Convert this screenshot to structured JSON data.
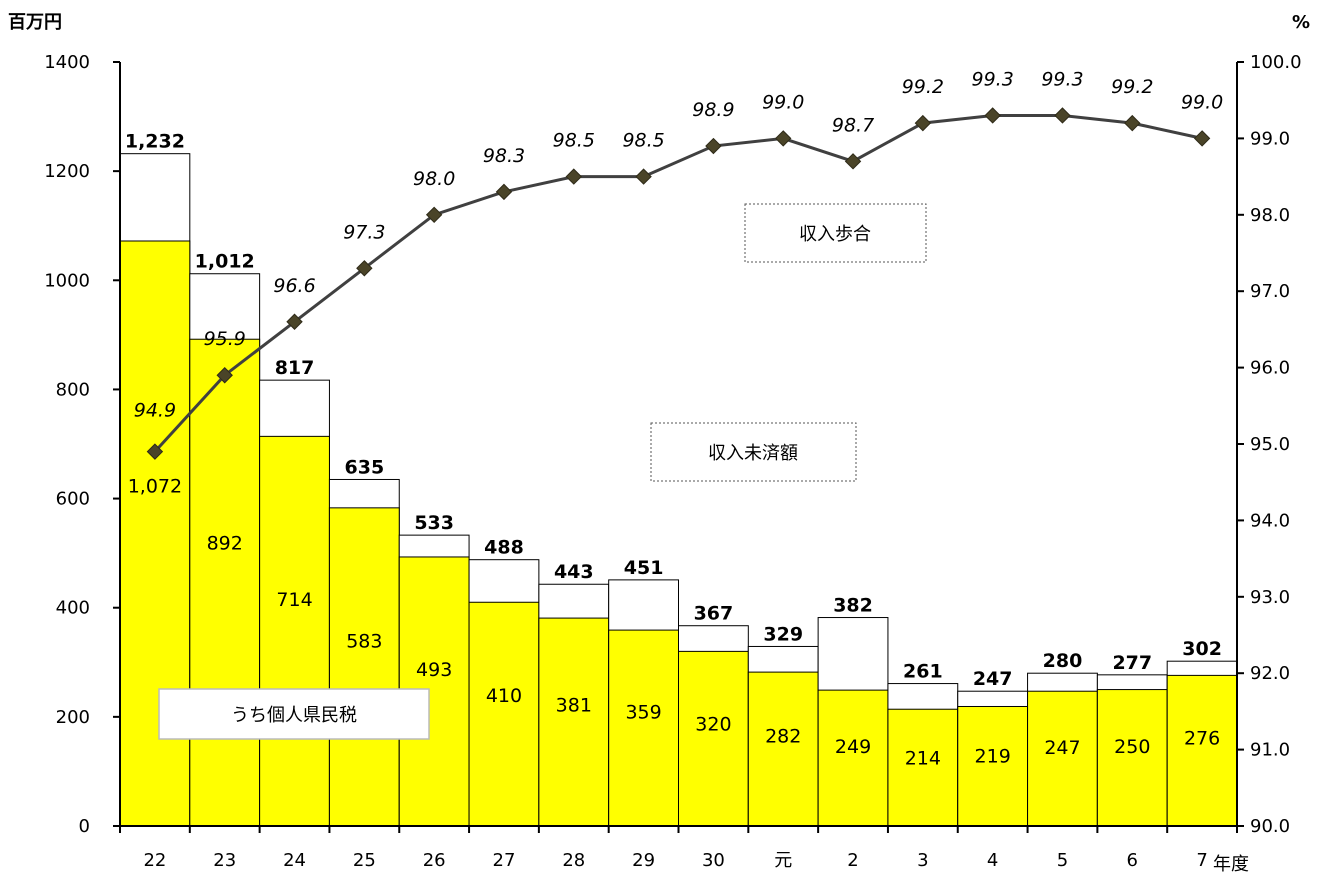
{
  "chart_data": {
    "type": "bar",
    "stacked_overlay": true,
    "categories": [
      "22",
      "23",
      "24",
      "25",
      "26",
      "27",
      "28",
      "29",
      "30",
      "元",
      "2",
      "3",
      "4",
      "5",
      "6",
      "7"
    ],
    "series": [
      {
        "name": "収入未済額",
        "values": [
          1232,
          1012,
          817,
          635,
          533,
          488,
          443,
          451,
          367,
          329,
          382,
          261,
          247,
          280,
          277,
          302
        ],
        "labels": [
          "1,232",
          "1,012",
          "817",
          "635",
          "533",
          "488",
          "443",
          "451",
          "367",
          "329",
          "382",
          "261",
          "247",
          "280",
          "277",
          "302"
        ],
        "color": "#ffffff"
      },
      {
        "name": "うち個人県民税",
        "values": [
          1072,
          892,
          714,
          583,
          493,
          410,
          381,
          359,
          320,
          282,
          249,
          214,
          219,
          247,
          250,
          276
        ],
        "labels": [
          "1,072",
          "892",
          "714",
          "583",
          "493",
          "410",
          "381",
          "359",
          "320",
          "282",
          "249",
          "214",
          "219",
          "247",
          "250",
          "276"
        ],
        "color": "#ffff00"
      },
      {
        "name": "収入歩合",
        "type": "line",
        "axis": "right",
        "values": [
          94.9,
          95.9,
          96.6,
          97.3,
          98.0,
          98.3,
          98.5,
          98.5,
          98.9,
          99.0,
          98.7,
          99.2,
          99.3,
          99.3,
          99.2,
          99.0
        ],
        "labels": [
          "94.9",
          "95.9",
          "96.6",
          "97.3",
          "98.0",
          "98.3",
          "98.5",
          "98.5",
          "98.9",
          "99.0",
          "98.7",
          "99.2",
          "99.3",
          "99.3",
          "99.2",
          "99.0"
        ],
        "color": "#403a2a"
      }
    ],
    "left_axis": {
      "unit": "百万円",
      "ylim": [
        0,
        1400
      ],
      "ticks": [
        "0",
        "200",
        "400",
        "600",
        "800",
        "1000",
        "1200",
        "1400"
      ]
    },
    "right_axis": {
      "unit": "%",
      "ylim": [
        90.0,
        100.0
      ],
      "ticks": [
        "90.0",
        "91.0",
        "92.0",
        "93.0",
        "94.0",
        "95.0",
        "96.0",
        "97.0",
        "98.0",
        "99.0",
        "100.0"
      ]
    },
    "x_axis": {
      "unit": "年度"
    },
    "annotations": {
      "rate_box": "収入歩合",
      "unpaid_box": "収入未済額",
      "individual_box": "うち個人県民税"
    },
    "grid": false
  }
}
